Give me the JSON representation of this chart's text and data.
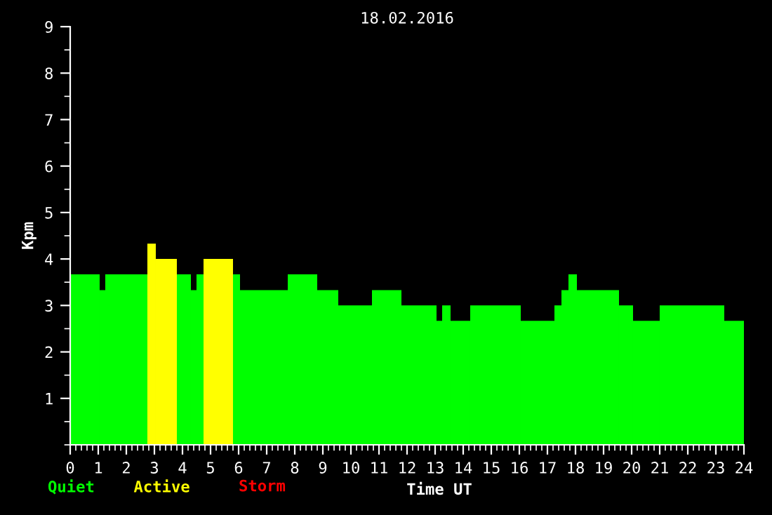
{
  "chart_data": {
    "type": "histogram",
    "title": "18.02.2016",
    "xlabel": "Time UT",
    "ylabel": "Kpm",
    "bins": [
      0,
      1.05,
      1.25,
      2.75,
      3.05,
      3.8,
      4.3,
      4.5,
      4.75,
      5.8,
      6.05,
      7.75,
      8.8,
      9.55,
      10.75,
      11.8,
      13.05,
      13.25,
      13.55,
      14.25,
      16.05,
      17.25,
      17.5,
      17.75,
      18.05,
      19.55,
      20.05,
      21,
      23.3,
      24
    ],
    "series": [
      {
        "name": "Quiet",
        "color": "#00ff00",
        "values": [
          3.67,
          3.33,
          3.67,
          null,
          null,
          3.67,
          3.33,
          3.67,
          null,
          3.67,
          3.33,
          3.67,
          3.33,
          3.0,
          3.33,
          3.0,
          2.67,
          3.0,
          2.67,
          3.0,
          2.67,
          3.0,
          3.33,
          3.67,
          3.33,
          3.0,
          2.67,
          3.0,
          2.67
        ]
      },
      {
        "name": "Active",
        "color": "#ffff00",
        "values": [
          null,
          null,
          null,
          4.33,
          4.0,
          null,
          null,
          null,
          4.0,
          null,
          null,
          null,
          null,
          null,
          null,
          null,
          null,
          null,
          null,
          null,
          null,
          null,
          null,
          null,
          null,
          null,
          null,
          null,
          null
        ]
      }
    ],
    "annotations": [
      "Storm"
    ],
    "xlim": [
      0,
      24
    ],
    "xticks": [
      0,
      1,
      2,
      3,
      4,
      5,
      6,
      7,
      8,
      9,
      10,
      11,
      12,
      13,
      14,
      15,
      16,
      17,
      18,
      19,
      20,
      21,
      22,
      23,
      24
    ],
    "ylim": [
      0,
      9
    ],
    "yticks": [
      1,
      2,
      3,
      4,
      5,
      6,
      7,
      8,
      9
    ],
    "grid": false,
    "legend": "bottom left"
  }
}
